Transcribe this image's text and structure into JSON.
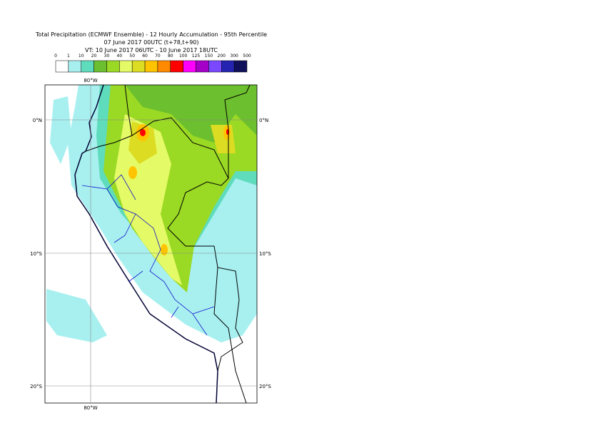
{
  "title": [
    "Total Precipitation (ECMWF Ensemble) - 12 Hourly Accumulation - 95th Percentile",
    "07 June 2017 00UTC (t+78,t+90)",
    "VT: 10 June 2017 06UTC - 10 June 2017 18UTC"
  ],
  "legend": {
    "labels": [
      "0",
      "1",
      "10",
      "20",
      "30",
      "40",
      "50",
      "60",
      "70",
      "80",
      "100",
      "125",
      "150",
      "200",
      "300",
      "500"
    ],
    "colors": [
      "#ffffff",
      "#a8f0f0",
      "#5fdcbc",
      "#6cbf2e",
      "#9ad924",
      "#e4fa66",
      "#dcdc22",
      "#ffc400",
      "#ff8a00",
      "#ff0000",
      "#ff00ff",
      "#a400c8",
      "#7a48ff",
      "#2424b0",
      "#10105a"
    ]
  },
  "map": {
    "lon_labels": [
      "80°W"
    ],
    "lat_labels": [
      "0°N",
      "10°S",
      "20°S"
    ]
  }
}
